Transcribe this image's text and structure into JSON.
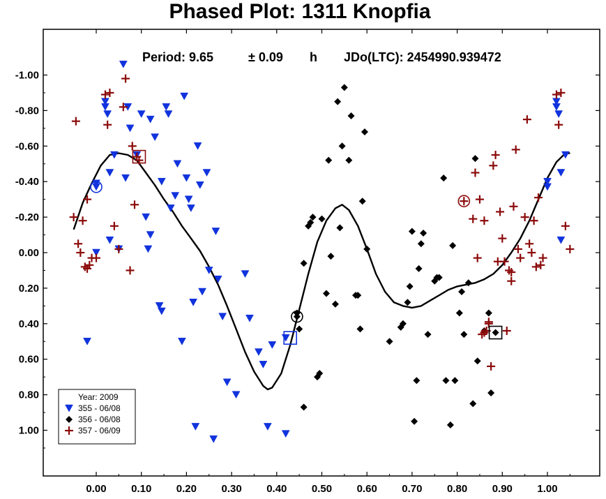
{
  "chart_data": {
    "type": "scatter",
    "title": "Phased Plot: 1311 Knopfia",
    "period_label": "Period: 9.65",
    "period_error_label": "± 0.09",
    "period_unit": "h",
    "epoch_label": "JDo(LTC): 2454990.939472",
    "xlim": [
      -0.12,
      1.12
    ],
    "ylim": [
      1.25,
      -1.25
    ],
    "x_ticks": [
      "0.00",
      "0.10",
      "0.20",
      "0.30",
      "0.40",
      "0.50",
      "0.60",
      "0.70",
      "0.80",
      "0.90",
      "1.00"
    ],
    "y_ticks": [
      "-1.00",
      "-0.80",
      "-0.60",
      "-0.40",
      "-0.20",
      "0.00",
      "0.20",
      "0.40",
      "0.60",
      "0.80",
      "1.00"
    ],
    "legend": {
      "title": "Year: 2009",
      "placement": "bottom-left",
      "entries": [
        "355 - 06/08",
        "356 - 06/08",
        "357 - 06/09"
      ]
    },
    "series": [
      {
        "name": "355 - 06/08",
        "marker": "triangle-down",
        "color": "#1133dd",
        "reference_point": [
          0.0,
          -0.37
        ],
        "points": [
          [
            0.0,
            -0.37
          ],
          [
            0.0,
            -0.39
          ],
          [
            -0.02,
            0.5
          ],
          [
            0.05,
            -0.02
          ],
          [
            0.06,
            -1.06
          ],
          [
            0.065,
            -0.42
          ],
          [
            0.07,
            -0.82
          ],
          [
            -0.0,
            0.0
          ],
          [
            0.02,
            -0.85
          ],
          [
            0.02,
            -0.82
          ],
          [
            0.025,
            -0.78
          ],
          [
            0.03,
            -0.45
          ],
          [
            0.04,
            -0.55
          ],
          [
            0.075,
            -0.7
          ],
          [
            0.09,
            -0.55
          ],
          [
            0.1,
            -0.78
          ],
          [
            0.11,
            -0.2
          ],
          [
            0.12,
            -0.75
          ],
          [
            0.13,
            -0.65
          ],
          [
            0.115,
            -0.02
          ],
          [
            0.14,
            0.3
          ],
          [
            0.145,
            -0.4
          ],
          [
            0.155,
            -0.82
          ],
          [
            0.16,
            -0.78
          ],
          [
            0.165,
            -0.25
          ],
          [
            0.175,
            -0.32
          ],
          [
            0.18,
            -0.5
          ],
          [
            0.19,
            0.5
          ],
          [
            0.195,
            -0.88
          ],
          [
            0.2,
            -0.42
          ],
          [
            0.205,
            -0.3
          ],
          [
            0.21,
            -0.25
          ],
          [
            0.22,
            0.98
          ],
          [
            0.225,
            -0.6
          ],
          [
            0.23,
            -0.38
          ],
          [
            0.235,
            0.22
          ],
          [
            0.245,
            -0.45
          ],
          [
            0.25,
            0.1
          ],
          [
            0.26,
            1.05
          ],
          [
            0.265,
            -0.12
          ],
          [
            0.27,
            0.15
          ],
          [
            0.28,
            0.36
          ],
          [
            0.29,
            0.73
          ],
          [
            0.31,
            0.8
          ],
          [
            0.33,
            0.12
          ],
          [
            0.34,
            0.37
          ],
          [
            0.36,
            0.56
          ],
          [
            0.37,
            0.63
          ],
          [
            0.38,
            0.98
          ],
          [
            0.39,
            0.52
          ],
          [
            0.42,
            1.02
          ],
          [
            0.42,
            0.48
          ],
          [
            0.215,
            0.28
          ],
          [
            0.145,
            0.33
          ],
          [
            0.12,
            -0.1
          ],
          [
            0.03,
            -0.07
          ],
          [
            1.0,
            -0.37
          ],
          [
            1.02,
            -0.85
          ],
          [
            1.02,
            -0.82
          ],
          [
            1.025,
            -0.78
          ],
          [
            1.03,
            -0.45
          ],
          [
            1.04,
            -0.55
          ],
          [
            1.03,
            -0.07
          ],
          [
            1.0,
            -0.4
          ]
        ]
      },
      {
        "name": "356 - 06/08",
        "marker": "diamond",
        "color": "#000000",
        "reference_point": [
          0.445,
          0.36
        ],
        "points": [
          [
            0.445,
            0.36
          ],
          [
            0.445,
            0.34
          ],
          [
            0.45,
            0.43
          ],
          [
            0.46,
            0.87
          ],
          [
            0.46,
            0.06
          ],
          [
            0.47,
            -0.15
          ],
          [
            0.475,
            -0.17
          ],
          [
            0.48,
            -0.2
          ],
          [
            0.49,
            0.7
          ],
          [
            0.495,
            0.68
          ],
          [
            0.5,
            -0.19
          ],
          [
            0.51,
            0.23
          ],
          [
            0.515,
            -0.52
          ],
          [
            0.52,
            0.02
          ],
          [
            0.53,
            0.29
          ],
          [
            0.535,
            -0.85
          ],
          [
            0.54,
            -0.14
          ],
          [
            0.545,
            -0.6
          ],
          [
            0.55,
            -0.93
          ],
          [
            0.56,
            -0.52
          ],
          [
            0.565,
            -0.77
          ],
          [
            0.575,
            0.24
          ],
          [
            0.58,
            0.24
          ],
          [
            0.585,
            0.43
          ],
          [
            0.59,
            -0.29
          ],
          [
            0.595,
            -0.68
          ],
          [
            0.6,
            -0.02
          ],
          [
            0.675,
            0.42
          ],
          [
            0.68,
            0.4
          ],
          [
            0.69,
            0.28
          ],
          [
            0.695,
            0.19
          ],
          [
            0.7,
            -0.12
          ],
          [
            0.705,
            0.95
          ],
          [
            0.71,
            0.72
          ],
          [
            0.715,
            0.09
          ],
          [
            0.72,
            -0.05
          ],
          [
            0.725,
            -0.11
          ],
          [
            0.735,
            0.46
          ],
          [
            0.75,
            0.16
          ],
          [
            0.755,
            0.14
          ],
          [
            0.76,
            0.14
          ],
          [
            0.77,
            -0.42
          ],
          [
            0.775,
            0.72
          ],
          [
            0.785,
            0.97
          ],
          [
            0.795,
            0.72
          ],
          [
            0.79,
            -0.04
          ],
          [
            0.805,
            0.34
          ],
          [
            0.81,
            0.22
          ],
          [
            0.815,
            0.46
          ],
          [
            0.825,
            0.17
          ],
          [
            0.835,
            0.85
          ],
          [
            0.84,
            -0.53
          ],
          [
            0.845,
            0.61
          ],
          [
            0.86,
            0.44
          ],
          [
            0.87,
            0.34
          ],
          [
            0.875,
            0.79
          ],
          [
            0.885,
            0.45
          ],
          [
            0.65,
            0.5
          ]
        ]
      },
      {
        "name": "357 - 06/09",
        "marker": "plus",
        "color": "#8b0a0a",
        "reference_point": [
          0.815,
          -0.29
        ],
        "points": [
          [
            0.815,
            -0.29
          ],
          [
            0.835,
            -0.19
          ],
          [
            0.84,
            -0.45
          ],
          [
            0.845,
            0.03
          ],
          [
            0.85,
            -0.3
          ],
          [
            0.855,
            0.46
          ],
          [
            0.86,
            -0.18
          ],
          [
            0.865,
            0.44
          ],
          [
            0.87,
            0.39
          ],
          [
            0.875,
            0.64
          ],
          [
            0.88,
            -0.49
          ],
          [
            0.885,
            -0.55
          ],
          [
            0.89,
            0.05
          ],
          [
            0.895,
            -0.23
          ],
          [
            0.9,
            -0.08
          ],
          [
            0.905,
            0.05
          ],
          [
            0.91,
            0.44
          ],
          [
            0.915,
            0.1
          ],
          [
            0.92,
            0.16
          ],
          [
            0.925,
            -0.26
          ],
          [
            0.93,
            -0.58
          ],
          [
            0.935,
            -0.02
          ],
          [
            0.94,
            0.03
          ],
          [
            0.95,
            -0.2
          ],
          [
            0.955,
            -0.75
          ],
          [
            0.96,
            -0.05
          ],
          [
            0.965,
            0.0
          ],
          [
            0.97,
            -0.18
          ],
          [
            0.975,
            0.08
          ],
          [
            0.98,
            -0.31
          ],
          [
            0.985,
            0.07
          ],
          [
            0.99,
            0.03
          ],
          [
            0.87,
            0.4
          ],
          [
            0.86,
            0.45
          ],
          [
            0.92,
            0.11
          ],
          [
            -0.05,
            -0.2
          ],
          [
            -0.045,
            -0.74
          ],
          [
            -0.04,
            -0.05
          ],
          [
            -0.035,
            0.0
          ],
          [
            -0.03,
            -0.18
          ],
          [
            -0.025,
            0.08
          ],
          [
            -0.02,
            -0.3
          ],
          [
            -0.015,
            0.07
          ],
          [
            -0.01,
            0.03
          ],
          [
            -0.02,
            0.09
          ],
          [
            0.0,
            0.03
          ],
          [
            0.02,
            -0.89
          ],
          [
            0.03,
            -0.9
          ],
          [
            0.025,
            -0.72
          ],
          [
            0.04,
            -0.15
          ],
          [
            0.05,
            -0.02
          ],
          [
            0.06,
            -0.82
          ],
          [
            0.065,
            -0.98
          ],
          [
            0.075,
            0.1
          ],
          [
            0.08,
            -0.6
          ],
          [
            0.085,
            -0.27
          ],
          [
            0.09,
            -0.54
          ],
          [
            0.095,
            -0.52
          ],
          [
            1.02,
            -0.89
          ],
          [
            1.03,
            -0.9
          ],
          [
            1.025,
            -0.72
          ],
          [
            1.04,
            -0.15
          ],
          [
            1.05,
            -0.02
          ]
        ]
      }
    ],
    "fit_curve": [
      [
        -0.05,
        -0.13
      ],
      [
        -0.03,
        -0.28
      ],
      [
        -0.01,
        -0.39
      ],
      [
        0.01,
        -0.49
      ],
      [
        0.03,
        -0.55
      ],
      [
        0.05,
        -0.56
      ],
      [
        0.07,
        -0.55
      ],
      [
        0.09,
        -0.52
      ],
      [
        0.11,
        -0.45
      ],
      [
        0.13,
        -0.38
      ],
      [
        0.15,
        -0.3
      ],
      [
        0.17,
        -0.23
      ],
      [
        0.19,
        -0.15
      ],
      [
        0.21,
        -0.08
      ],
      [
        0.23,
        -0.01
      ],
      [
        0.25,
        0.08
      ],
      [
        0.27,
        0.18
      ],
      [
        0.29,
        0.3
      ],
      [
        0.31,
        0.43
      ],
      [
        0.33,
        0.56
      ],
      [
        0.35,
        0.67
      ],
      [
        0.37,
        0.75
      ],
      [
        0.38,
        0.77
      ],
      [
        0.39,
        0.76
      ],
      [
        0.41,
        0.68
      ],
      [
        0.43,
        0.52
      ],
      [
        0.45,
        0.32
      ],
      [
        0.47,
        0.12
      ],
      [
        0.49,
        -0.06
      ],
      [
        0.51,
        -0.18
      ],
      [
        0.53,
        -0.25
      ],
      [
        0.545,
        -0.27
      ],
      [
        0.56,
        -0.24
      ],
      [
        0.58,
        -0.15
      ],
      [
        0.6,
        -0.02
      ],
      [
        0.62,
        0.12
      ],
      [
        0.64,
        0.22
      ],
      [
        0.66,
        0.28
      ],
      [
        0.68,
        0.3
      ],
      [
        0.7,
        0.31
      ],
      [
        0.72,
        0.3
      ],
      [
        0.74,
        0.27
      ],
      [
        0.76,
        0.24
      ],
      [
        0.78,
        0.21
      ],
      [
        0.8,
        0.19
      ],
      [
        0.82,
        0.18
      ],
      [
        0.84,
        0.17
      ],
      [
        0.86,
        0.15
      ],
      [
        0.88,
        0.12
      ],
      [
        0.9,
        0.07
      ],
      [
        0.92,
        0.0
      ],
      [
        0.94,
        -0.08
      ],
      [
        0.96,
        -0.18
      ],
      [
        0.98,
        -0.3
      ],
      [
        1.0,
        -0.42
      ],
      [
        1.02,
        -0.51
      ],
      [
        1.04,
        -0.56
      ],
      [
        1.05,
        -0.56
      ]
    ],
    "square_markers": [
      {
        "series": "355 - 06/08",
        "point": [
          0.43,
          0.48
        ]
      },
      {
        "series": "356 - 06/08",
        "point": [
          0.885,
          0.45
        ]
      },
      {
        "series": "357 - 06/09",
        "point": [
          0.095,
          -0.54
        ]
      }
    ]
  }
}
